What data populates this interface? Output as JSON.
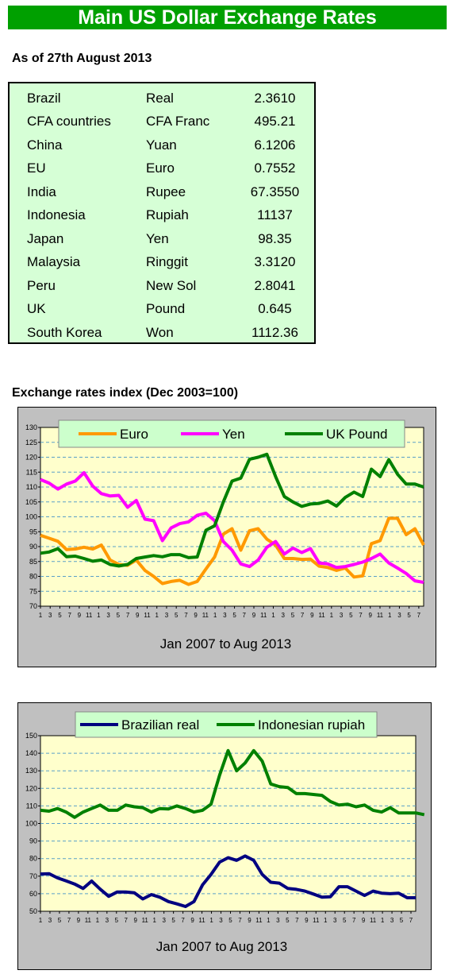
{
  "header": {
    "title": "Main US Dollar Exchange Rates"
  },
  "as_of": "As of 27th August 2013",
  "rates": [
    {
      "country": "Brazil",
      "currency": "Real",
      "value": "2.3610"
    },
    {
      "country": "CFA countries",
      "currency": "CFA Franc",
      "value": "495.21"
    },
    {
      "country": "China",
      "currency": "Yuan",
      "value": "6.1206"
    },
    {
      "country": "EU",
      "currency": "Euro",
      "value": "0.7552"
    },
    {
      "country": "India",
      "currency": "Rupee",
      "value": "67.3550"
    },
    {
      "country": "Indonesia",
      "currency": "Rupiah",
      "value": "11137"
    },
    {
      "country": "Japan",
      "currency": "Yen",
      "value": "98.35"
    },
    {
      "country": "Malaysia",
      "currency": "Ringgit",
      "value": "3.3120"
    },
    {
      "country": "Peru",
      "currency": "New Sol",
      "value": "2.8041"
    },
    {
      "country": "UK",
      "currency": "Pound",
      "value": "0.645"
    },
    {
      "country": "South Korea",
      "currency": "Won",
      "value": "1112.36"
    }
  ],
  "section_title": "Exchange rates index (Dec 2003=100)",
  "chart_data": [
    {
      "type": "line",
      "xlabel": "Jan 2007 to Aug 2013",
      "ylim": [
        70,
        130
      ],
      "yticks": [
        70,
        75,
        80,
        85,
        90,
        95,
        100,
        105,
        110,
        115,
        120,
        125,
        130
      ],
      "xticks": [
        "1",
        "3",
        "5",
        "7",
        "9",
        "11",
        "1",
        "3",
        "5",
        "7",
        "9",
        "11",
        "1",
        "3",
        "5",
        "7",
        "9",
        "11",
        "1",
        "3",
        "5",
        "7",
        "9",
        "11",
        "1",
        "3",
        "5",
        "7",
        "9",
        "11",
        "1",
        "3",
        "5",
        "7",
        "9",
        "11",
        "1",
        "3",
        "5",
        "7"
      ],
      "grid": "horizontal dashed",
      "legend": "top",
      "series": [
        {
          "name": "Euro",
          "color": "#ff9900",
          "values": [
            93.8,
            92.8,
            91.8,
            89,
            89.2,
            89.8,
            89.2,
            90.5,
            85.5,
            84,
            83.7,
            85.5,
            82,
            80,
            77.6,
            78.3,
            78.7,
            77.3,
            78.3,
            82.5,
            86.5,
            94.2,
            96,
            88.8,
            95.3,
            96,
            92.5,
            90.5,
            86,
            86,
            85.7,
            85.8,
            83.4,
            83,
            82,
            82.8,
            79.8,
            80.2,
            91,
            92,
            99.5,
            99.5,
            94,
            96,
            90.5
          ]
        },
        {
          "name": "Yen",
          "color": "#ff00ff",
          "values": [
            112.5,
            111.3,
            109.3,
            111,
            112,
            114.8,
            110.3,
            107.8,
            107,
            107.2,
            103.2,
            105.5,
            99.2,
            98.7,
            92,
            96.3,
            97.7,
            98.3,
            100.5,
            101.2,
            98.7,
            91.7,
            88.8,
            84.2,
            83.3,
            85.5,
            89.8,
            91.7,
            87.5,
            89.5,
            88,
            89.3,
            84.5,
            84.2,
            83,
            83.3,
            84,
            84.8,
            86,
            87.5,
            84.5,
            82.8,
            81,
            78.5,
            78
          ]
        },
        {
          "name": "UK Pound",
          "color": "#008000",
          "values": [
            87.8,
            88.2,
            89.3,
            86.6,
            86.8,
            86,
            85.1,
            85.5,
            84,
            83.5,
            84,
            86,
            86.5,
            87,
            86.6,
            87.3,
            87.3,
            86.3,
            86.5,
            95.5,
            97,
            105,
            112,
            113,
            119.3,
            120,
            121,
            113.5,
            106.8,
            105,
            103.5,
            104.3,
            104.5,
            105.3,
            103.6,
            106.5,
            108.3,
            106.8,
            116,
            113.5,
            119.2,
            114.3,
            111,
            111,
            110
          ]
        }
      ]
    },
    {
      "type": "line",
      "xlabel": "Jan 2007 to Aug 2013",
      "ylim": [
        50,
        150
      ],
      "yticks": [
        50,
        60,
        70,
        80,
        90,
        100,
        110,
        120,
        130,
        140,
        150
      ],
      "xticks": [
        "1",
        "3",
        "5",
        "7",
        "9",
        "11",
        "1",
        "3",
        "5",
        "7",
        "9",
        "11",
        "1",
        "3",
        "5",
        "7",
        "9",
        "11",
        "1",
        "3",
        "5",
        "7",
        "9",
        "11",
        "1",
        "3",
        "5",
        "7",
        "9",
        "11",
        "1",
        "3",
        "5",
        "7",
        "9",
        "11",
        "1",
        "3",
        "5",
        "7"
      ],
      "grid": "horizontal dashed",
      "legend": "top",
      "series": [
        {
          "name": "Brazilian real",
          "color": "#000080",
          "values": [
            71.2,
            71.4,
            69,
            67.3,
            65.5,
            63,
            67.2,
            62.6,
            58.5,
            61,
            61,
            60.5,
            57,
            59.5,
            58,
            55.5,
            54.2,
            52.7,
            55.5,
            65,
            71,
            78,
            80.5,
            79,
            81.5,
            79,
            71,
            66.5,
            66,
            63,
            62.5,
            61.5,
            59.8,
            58,
            58.3,
            64,
            64,
            61.5,
            59,
            61.5,
            60.3,
            60,
            60.3,
            57.7,
            57.7
          ]
        },
        {
          "name": "Indonesian rupiah",
          "color": "#008000",
          "values": [
            107.5,
            107,
            108.5,
            106.5,
            103.5,
            106.5,
            108.5,
            110.5,
            107.5,
            107.5,
            110.5,
            109.5,
            109,
            106.5,
            108.5,
            108.3,
            110,
            108.5,
            106.5,
            107.5,
            111,
            127.5,
            141.5,
            130,
            134.5,
            141.5,
            135.5,
            122.5,
            121,
            120.5,
            117,
            117,
            116.5,
            116,
            112.5,
            110.5,
            111,
            109.5,
            110.5,
            107.5,
            106.5,
            109,
            106,
            106,
            106,
            105
          ]
        }
      ]
    }
  ]
}
